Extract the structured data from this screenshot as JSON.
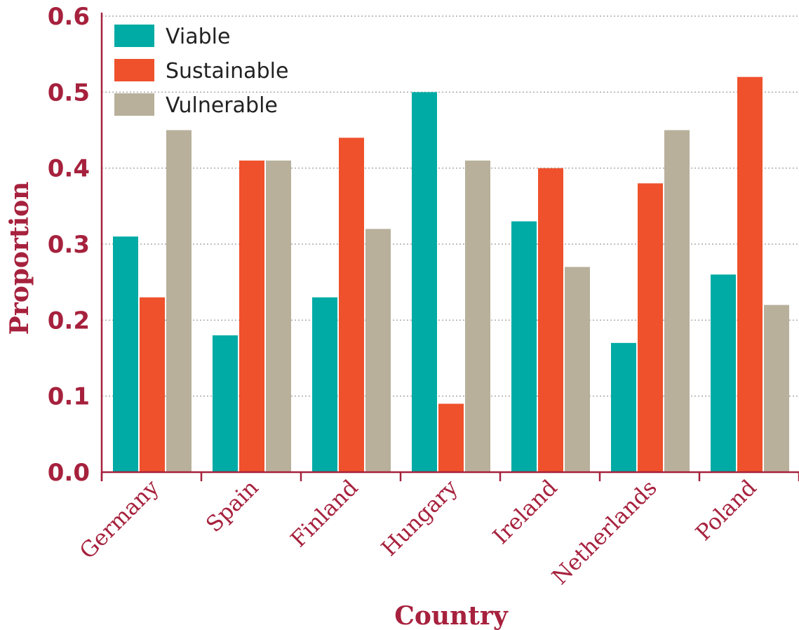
{
  "chart_data": {
    "type": "bar",
    "title": "",
    "xlabel": "Country",
    "ylabel": "Proportion",
    "categories": [
      "Germany",
      "Spain",
      "Finland",
      "Hungary",
      "Ireland",
      "Netherlands",
      "Poland"
    ],
    "series": [
      {
        "name": "Viable",
        "color": "#00ABA5",
        "values": [
          0.31,
          0.18,
          0.23,
          0.5,
          0.33,
          0.17,
          0.26
        ]
      },
      {
        "name": "Sustainable",
        "color": "#EF512C",
        "values": [
          0.23,
          0.41,
          0.44,
          0.09,
          0.4,
          0.38,
          0.52
        ]
      },
      {
        "name": "Vulnerable",
        "color": "#B8B09B",
        "values": [
          0.45,
          0.41,
          0.32,
          0.41,
          0.27,
          0.45,
          0.22
        ]
      }
    ],
    "ylim": [
      0.0,
      0.6
    ],
    "yticks": [
      "0.0",
      "0.1",
      "0.2",
      "0.3",
      "0.4",
      "0.5",
      "0.6"
    ],
    "grid": "horizontal dotted",
    "legend_position": "top-left",
    "text_color": "#A6213D",
    "grid_color": "#AAAAAA"
  }
}
